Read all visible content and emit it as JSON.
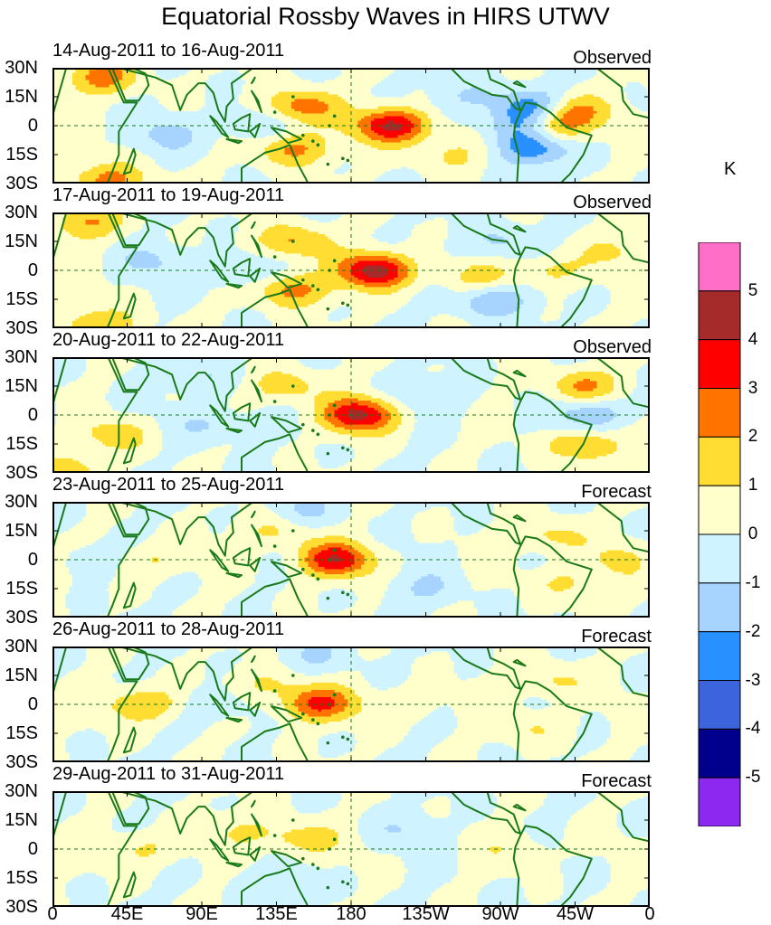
{
  "title": "Equatorial Rossby Waves in HIRS UTWV",
  "unit": "K",
  "panels": [
    {
      "date_range": "14-Aug-2011 to 16-Aug-2011",
      "type": "Observed"
    },
    {
      "date_range": "17-Aug-2011 to 19-Aug-2011",
      "type": "Observed"
    },
    {
      "date_range": "20-Aug-2011 to 22-Aug-2011",
      "type": "Observed"
    },
    {
      "date_range": "23-Aug-2011 to 25-Aug-2011",
      "type": "Forecast"
    },
    {
      "date_range": "26-Aug-2011 to 28-Aug-2011",
      "type": "Forecast"
    },
    {
      "date_range": "29-Aug-2011 to 31-Aug-2011",
      "type": "Forecast"
    }
  ],
  "lat_labels": [
    "30N",
    "15N",
    "0",
    "15S",
    "30S"
  ],
  "lon_labels": [
    "0",
    "45E",
    "90E",
    "135E",
    "180",
    "135W",
    "90W",
    "45W",
    "0"
  ],
  "colorbar": {
    "labels": [
      "5",
      "4",
      "3",
      "2",
      "1",
      "0",
      "-1",
      "-2",
      "-3",
      "-4",
      "-5"
    ],
    "colors": [
      "#ff6ec7",
      "#a52a2a",
      "#ff0000",
      "#ff7400",
      "#ffdd33",
      "#ffffcc",
      "#cff4ff",
      "#a6d4ff",
      "#2890ff",
      "#3c64dc",
      "#00008c",
      "#8c28f0"
    ]
  },
  "map_colors": {
    "land": "#1a7a1a",
    "equator": "#1a7a1a"
  },
  "anomaly_features": [
    [
      {
        "lon": 30,
        "lat": 25,
        "amp": 2.4
      },
      {
        "lon": 150,
        "lat": 10,
        "amp": 2.6
      },
      {
        "lon": 145,
        "lat": -12,
        "amp": 2.3
      },
      {
        "lon": 205,
        "lat": 0,
        "amp": 4.3
      },
      {
        "lon": 282,
        "lat": 0,
        "amp": -2.3
      },
      {
        "lon": 300,
        "lat": 0,
        "amp": 2.8
      },
      {
        "lon": 290,
        "lat": 10,
        "amp": -2.4
      },
      {
        "lon": 290,
        "lat": -12,
        "amp": -2.6
      },
      {
        "lon": 315,
        "lat": 8,
        "amp": 2.0
      },
      {
        "lon": 35,
        "lat": -28,
        "amp": 2.4
      },
      {
        "lon": 70,
        "lat": -5,
        "amp": -1.2
      },
      {
        "lon": 250,
        "lat": 15,
        "amp": -1.0
      },
      {
        "lon": 240,
        "lat": -15,
        "amp": 1.2
      },
      {
        "lon": 120,
        "lat": 0,
        "amp": -1.0
      }
    ],
    [
      {
        "lon": 20,
        "lat": 25,
        "amp": 2.0
      },
      {
        "lon": 145,
        "lat": 15,
        "amp": 2.2
      },
      {
        "lon": 145,
        "lat": -10,
        "amp": 2.5
      },
      {
        "lon": 195,
        "lat": 0,
        "amp": 4.5
      },
      {
        "lon": 255,
        "lat": -5,
        "amp": 1.4
      },
      {
        "lon": 265,
        "lat": -15,
        "amp": -2.2
      },
      {
        "lon": 270,
        "lat": 15,
        "amp": -1.2
      },
      {
        "lon": 300,
        "lat": 0,
        "amp": 1.4
      },
      {
        "lon": 30,
        "lat": -28,
        "amp": 2.0
      },
      {
        "lon": 110,
        "lat": 0,
        "amp": -1.3
      },
      {
        "lon": 340,
        "lat": 10,
        "amp": 1.0
      },
      {
        "lon": 60,
        "lat": 5,
        "amp": -1.0
      }
    ],
    [
      {
        "lon": 185,
        "lat": 0,
        "amp": 4.2
      },
      {
        "lon": 140,
        "lat": 15,
        "amp": 1.6
      },
      {
        "lon": 40,
        "lat": -10,
        "amp": 1.5
      },
      {
        "lon": 320,
        "lat": 15,
        "amp": 2.1
      },
      {
        "lon": 320,
        "lat": -15,
        "amp": 2.1
      },
      {
        "lon": 325,
        "lat": 0,
        "amp": -2.0
      },
      {
        "lon": 230,
        "lat": 10,
        "amp": -1.0
      },
      {
        "lon": 90,
        "lat": 20,
        "amp": -1.0
      },
      {
        "lon": 10,
        "lat": -28,
        "amp": 1.4
      },
      {
        "lon": 95,
        "lat": -5,
        "amp": -1.2
      }
    ],
    [
      {
        "lon": 170,
        "lat": 0,
        "amp": 3.8
      },
      {
        "lon": 60,
        "lat": 0,
        "amp": 1.2
      },
      {
        "lon": 135,
        "lat": 15,
        "amp": 1.3
      },
      {
        "lon": 300,
        "lat": 12,
        "amp": 1.4
      },
      {
        "lon": 310,
        "lat": -12,
        "amp": 1.2
      },
      {
        "lon": 345,
        "lat": 0,
        "amp": 1.2
      },
      {
        "lon": 150,
        "lat": 25,
        "amp": -1.2
      },
      {
        "lon": 225,
        "lat": -15,
        "amp": -1.0
      },
      {
        "lon": 20,
        "lat": 0,
        "amp": -1.0
      }
    ],
    [
      {
        "lon": 160,
        "lat": 0,
        "amp": 3.2
      },
      {
        "lon": 55,
        "lat": 0,
        "amp": 2.2
      },
      {
        "lon": 130,
        "lat": 10,
        "amp": 1.2
      },
      {
        "lon": 300,
        "lat": 12,
        "amp": 1.3
      },
      {
        "lon": 290,
        "lat": -12,
        "amp": 1.0
      },
      {
        "lon": 215,
        "lat": 0,
        "amp": 0.8
      },
      {
        "lon": 160,
        "lat": 25,
        "amp": -1.0
      },
      {
        "lon": 100,
        "lat": 0,
        "amp": -1.0
      }
    ],
    [
      {
        "lon": 150,
        "lat": 5,
        "amp": 1.6
      },
      {
        "lon": 55,
        "lat": 0,
        "amp": 1.3
      },
      {
        "lon": 115,
        "lat": 10,
        "amp": 1.0
      },
      {
        "lon": 135,
        "lat": -18,
        "amp": -0.9
      },
      {
        "lon": 280,
        "lat": 0,
        "amp": 0.8
      },
      {
        "lon": 210,
        "lat": 10,
        "amp": -0.8
      }
    ]
  ]
}
